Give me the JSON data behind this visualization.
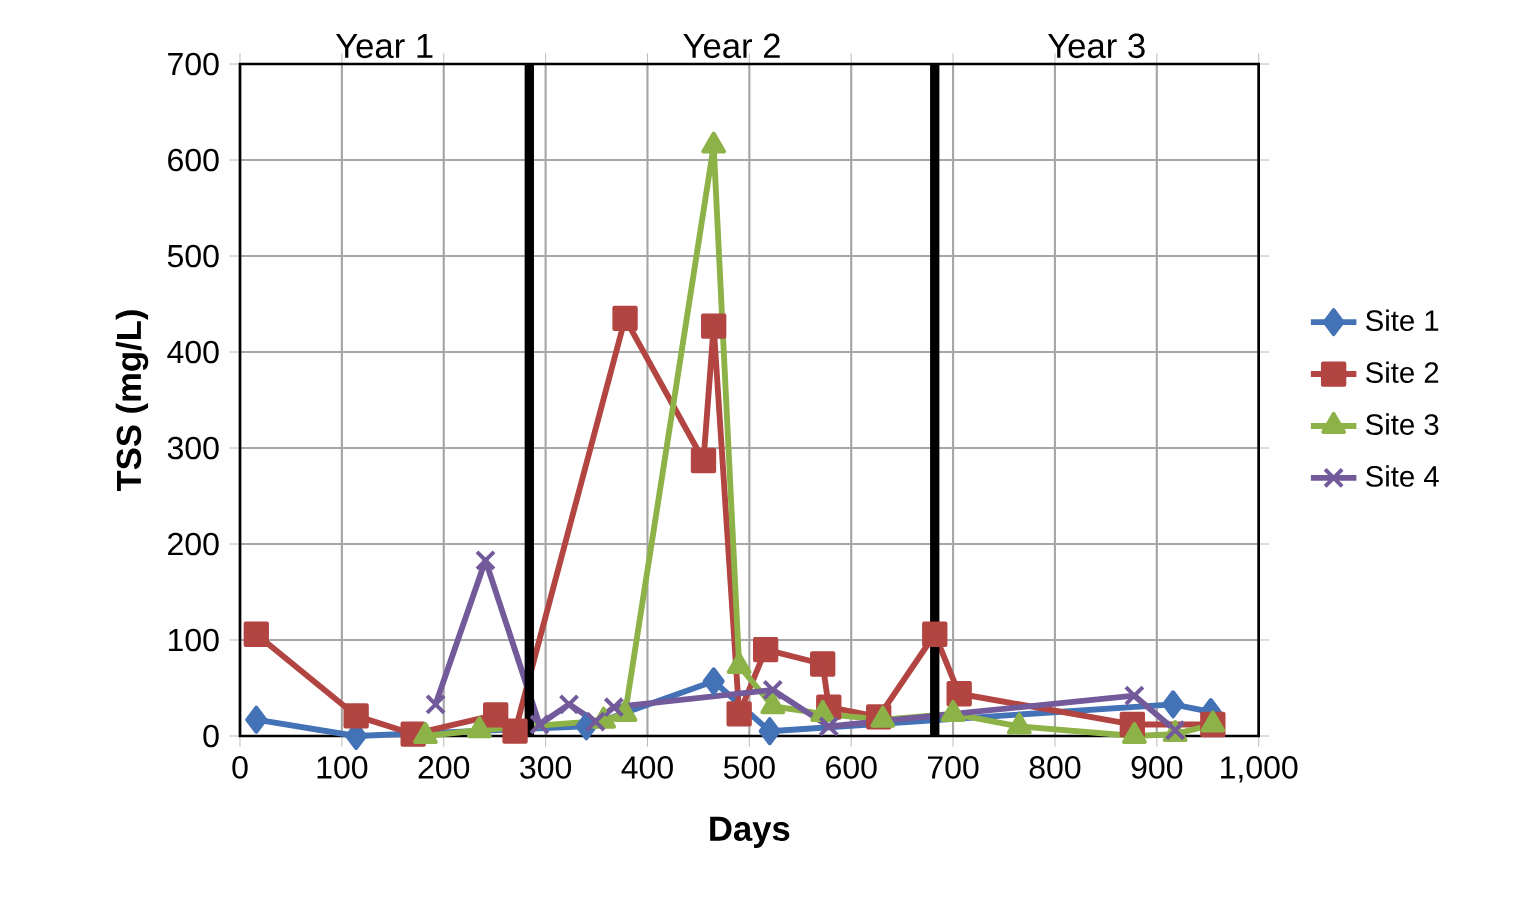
{
  "chart_data": {
    "type": "line",
    "xlabel": "Days",
    "ylabel": "TSS (mg/L)",
    "xlim": [
      0,
      1000
    ],
    "xticks": [
      0,
      100,
      200,
      300,
      400,
      500,
      600,
      700,
      800,
      900,
      {
        "value": 1000,
        "label": "1,000"
      }
    ],
    "ylim": [
      0,
      700
    ],
    "yticks": [
      0,
      100,
      200,
      300,
      400,
      500,
      600,
      700
    ],
    "grid": true,
    "legend": "right",
    "ref_lines": [
      {
        "axis": "x",
        "value": 284,
        "color": "#000000"
      },
      {
        "axis": "x",
        "value": 682,
        "color": "#000000"
      }
    ],
    "annotations": [
      "Year 1",
      "Year 2",
      "Year 3"
    ],
    "series": [
      {
        "name": "Site 1",
        "color": "#4372b6",
        "marker": "diamond",
        "x": [
          16,
          114,
          340,
          465,
          520,
          916,
          953
        ],
        "values": [
          17,
          0,
          10,
          57,
          5,
          33,
          25
        ]
      },
      {
        "name": "Site 2",
        "color": "#b24541",
        "marker": "square",
        "x": [
          16,
          114,
          170,
          251,
          270,
          378,
          455,
          465,
          490,
          516,
          572,
          578,
          627,
          682,
          706,
          876,
          955
        ],
        "values": [
          106,
          21,
          2,
          22,
          5,
          435,
          287,
          427,
          23,
          90,
          75,
          30,
          20,
          106,
          44,
          12,
          12
        ]
      },
      {
        "name": "Site 3",
        "color": "#8cb248",
        "marker": "triangle",
        "x": [
          182,
          235,
          357,
          378,
          465,
          490,
          523,
          572,
          631,
          700,
          765,
          878,
          918,
          955
        ],
        "values": [
          0,
          6,
          16,
          23,
          615,
          73,
          31,
          23,
          17,
          23,
          10,
          0,
          2,
          12
        ]
      },
      {
        "name": "Site 4",
        "color": "#735a9a",
        "marker": "cross",
        "x": [
          192,
          241,
          294,
          323,
          349,
          367,
          523,
          578,
          878,
          918
        ],
        "values": [
          33,
          183,
          12,
          33,
          15,
          30,
          48,
          10,
          42,
          6
        ]
      }
    ]
  }
}
